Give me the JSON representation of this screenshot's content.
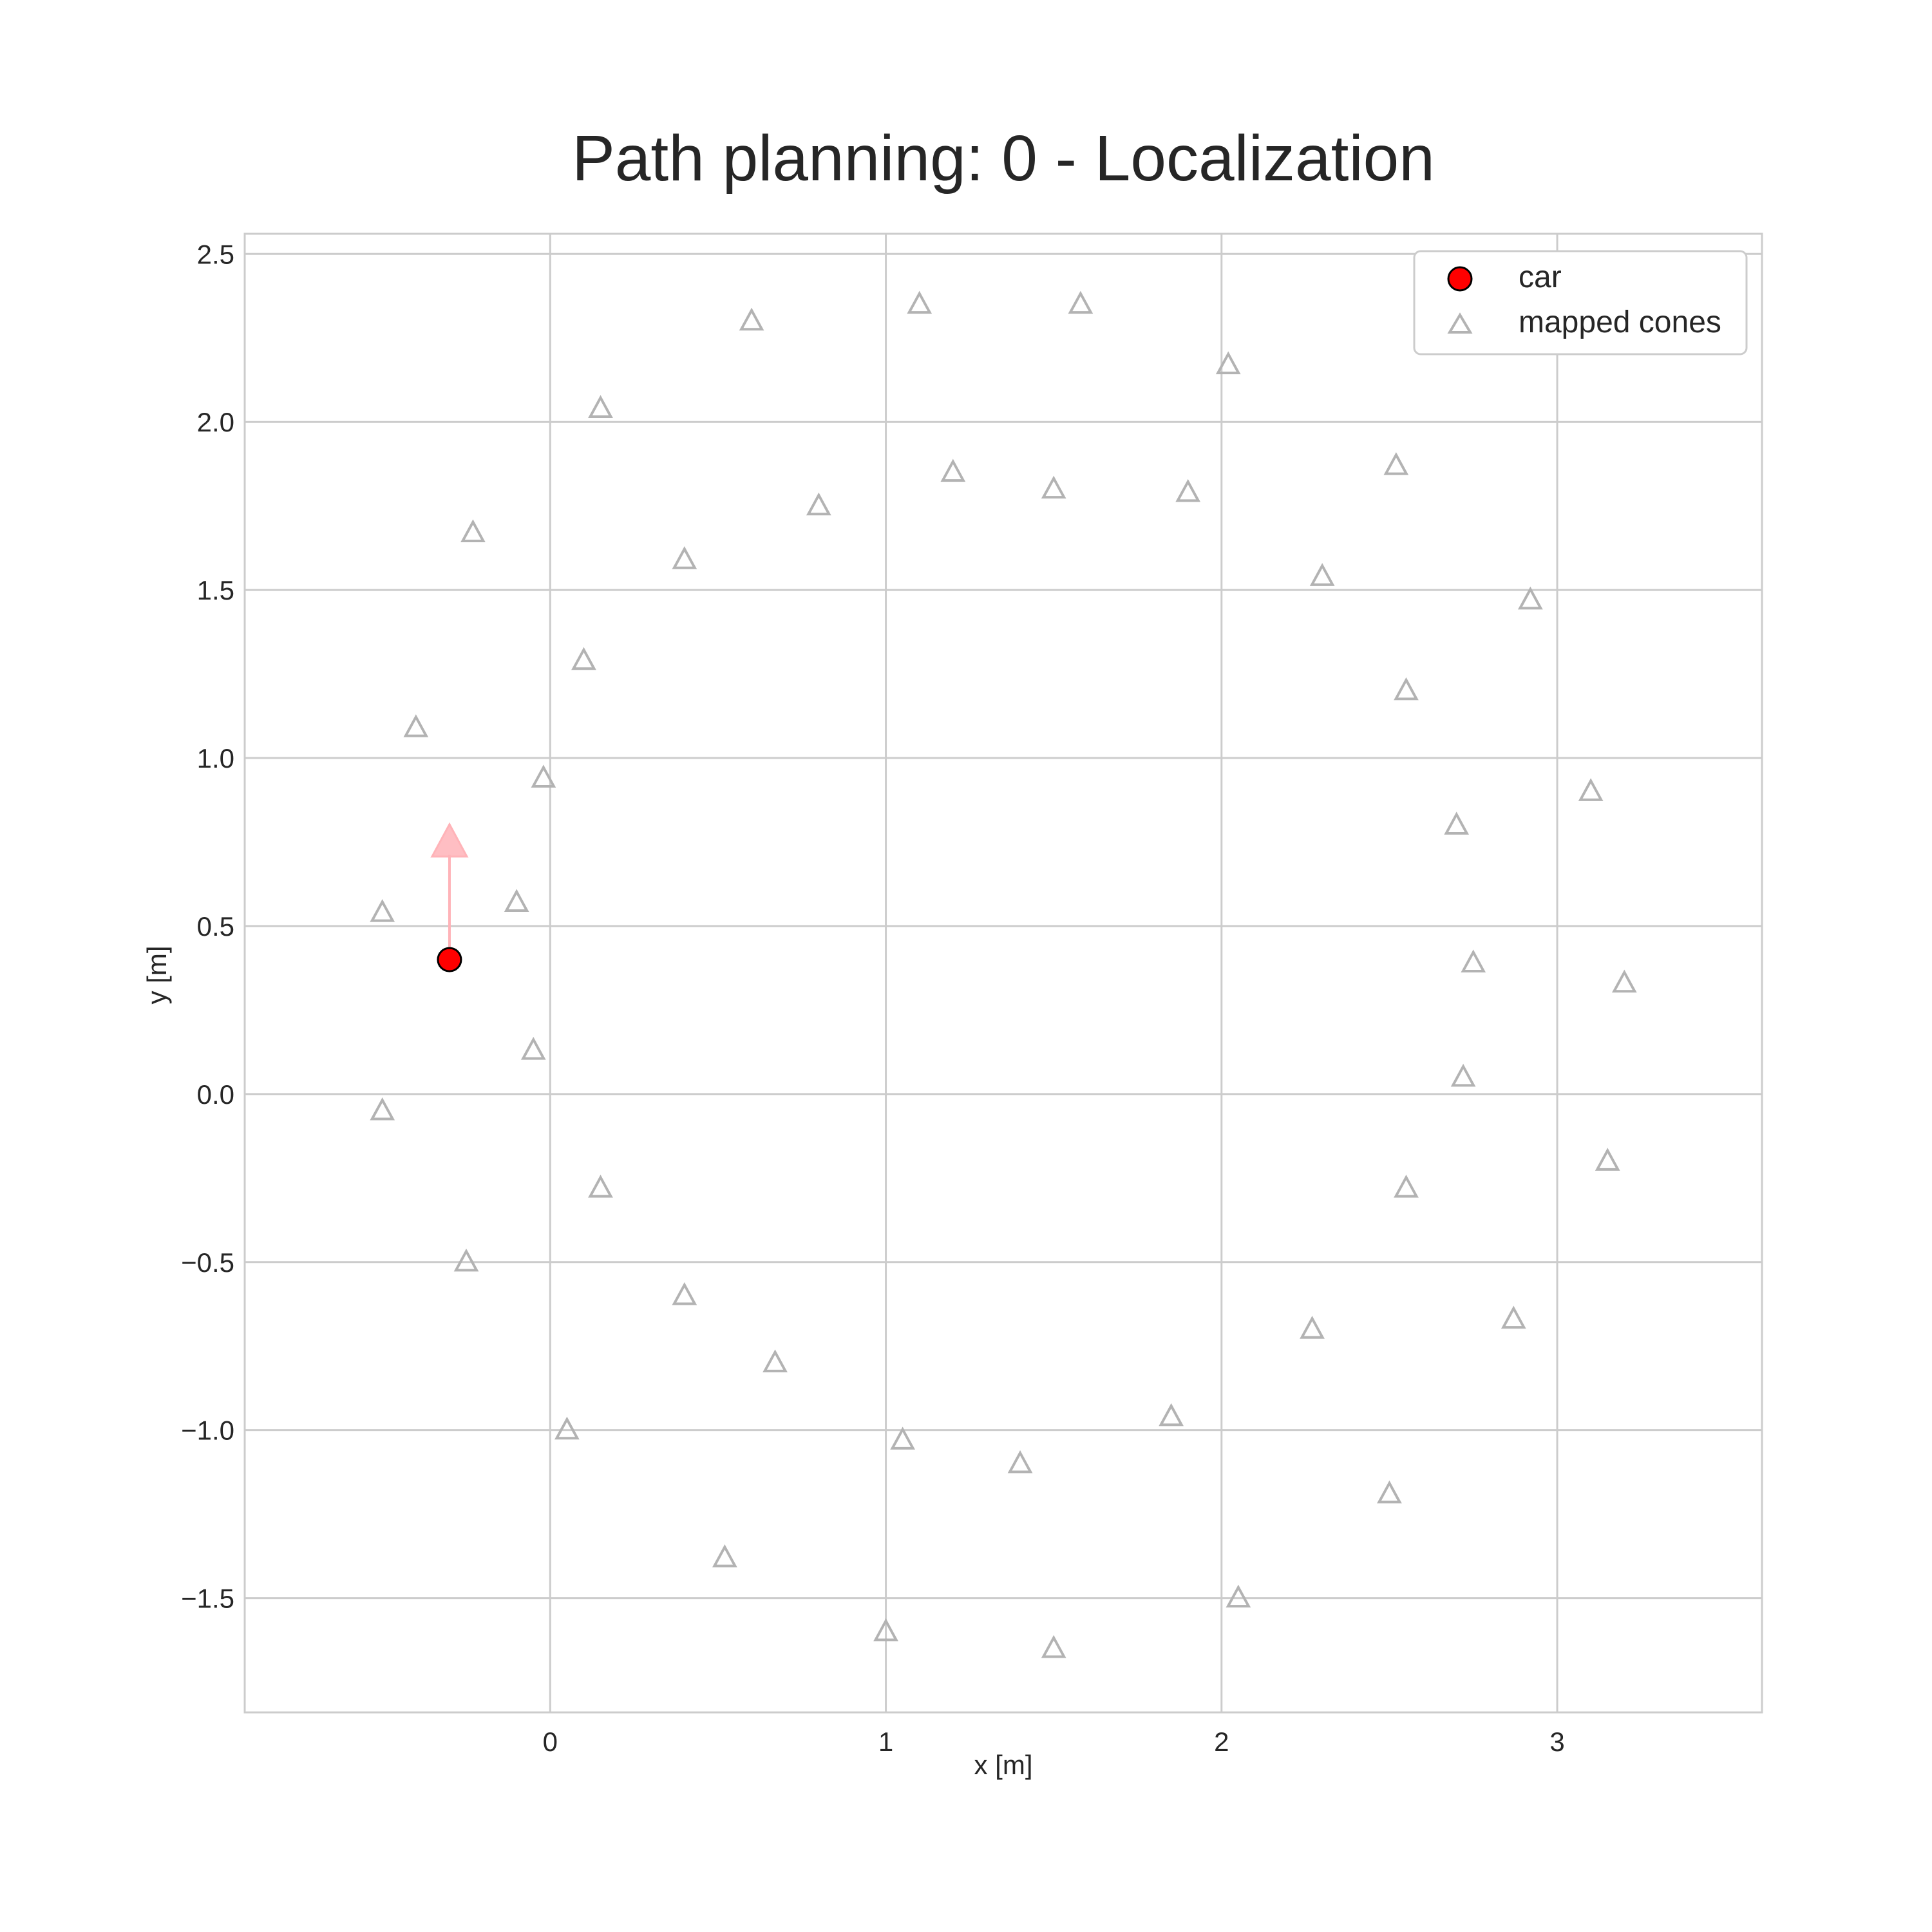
{
  "chart_data": {
    "type": "scatter",
    "title": "Path planning: 0 - Localization",
    "xlabel": "x [m]",
    "ylabel": "y [m]",
    "xlim": [
      -0.91,
      3.61
    ],
    "ylim": [
      -1.84,
      2.56
    ],
    "xticks": [
      "0",
      "1",
      "2",
      "3"
    ],
    "xtick_values": [
      0,
      1,
      2,
      3
    ],
    "yticks": [
      "−1.5",
      "−1.0",
      "−0.5",
      "0.0",
      "0.5",
      "1.0",
      "1.5",
      "2.0",
      "2.5"
    ],
    "ytick_values": [
      -1.5,
      -1.0,
      -0.5,
      0.0,
      0.5,
      1.0,
      1.5,
      2.0,
      2.5
    ],
    "grid": true,
    "legend_position": "top-right",
    "legend": [
      {
        "name": "car",
        "marker": "circle",
        "color": "#ff0000"
      },
      {
        "name": "mapped cones",
        "marker": "triangle",
        "color": "#b3b3b3"
      }
    ],
    "car": {
      "x": -0.3,
      "y": 0.4,
      "heading_to": {
        "x": -0.3,
        "y": 0.75
      },
      "arrow_color": "#ffb3b8"
    },
    "cones": [
      {
        "x": 0.6,
        "y": 2.3
      },
      {
        "x": 1.1,
        "y": 2.35
      },
      {
        "x": 1.58,
        "y": 2.35
      },
      {
        "x": 2.02,
        "y": 2.17
      },
      {
        "x": 0.15,
        "y": 2.04
      },
      {
        "x": -0.23,
        "y": 1.67
      },
      {
        "x": 0.4,
        "y": 1.59
      },
      {
        "x": 0.8,
        "y": 1.75
      },
      {
        "x": 1.2,
        "y": 1.85
      },
      {
        "x": 1.5,
        "y": 1.8
      },
      {
        "x": 1.9,
        "y": 1.79
      },
      {
        "x": 2.52,
        "y": 1.87
      },
      {
        "x": 2.3,
        "y": 1.54
      },
      {
        "x": 2.92,
        "y": 1.47
      },
      {
        "x": 2.55,
        "y": 1.2
      },
      {
        "x": 0.1,
        "y": 1.29
      },
      {
        "x": -0.4,
        "y": 1.09
      },
      {
        "x": -0.02,
        "y": 0.94
      },
      {
        "x": 2.7,
        "y": 0.8
      },
      {
        "x": 3.1,
        "y": 0.9
      },
      {
        "x": -0.5,
        "y": 0.54
      },
      {
        "x": -0.1,
        "y": 0.57
      },
      {
        "x": 2.75,
        "y": 0.39
      },
      {
        "x": 3.2,
        "y": 0.33
      },
      {
        "x": -0.05,
        "y": 0.13
      },
      {
        "x": 2.72,
        "y": 0.05
      },
      {
        "x": -0.5,
        "y": -0.05
      },
      {
        "x": 3.15,
        "y": -0.2
      },
      {
        "x": 0.15,
        "y": -0.28
      },
      {
        "x": 2.55,
        "y": -0.28
      },
      {
        "x": -0.25,
        "y": -0.5
      },
      {
        "x": 0.4,
        "y": -0.6
      },
      {
        "x": 0.67,
        "y": -0.8
      },
      {
        "x": 2.27,
        "y": -0.7
      },
      {
        "x": 2.87,
        "y": -0.67
      },
      {
        "x": 0.05,
        "y": -1.0
      },
      {
        "x": 1.05,
        "y": -1.03
      },
      {
        "x": 1.4,
        "y": -1.1
      },
      {
        "x": 1.85,
        "y": -0.96
      },
      {
        "x": 2.5,
        "y": -1.19
      },
      {
        "x": 0.52,
        "y": -1.38
      },
      {
        "x": 1.0,
        "y": -1.6
      },
      {
        "x": 1.5,
        "y": -1.65
      },
      {
        "x": 2.05,
        "y": -1.5
      }
    ],
    "colors": {
      "car_fill": "#ff0000",
      "car_edge": "#000000",
      "cone_edge": "#b3b3b3",
      "arrow": "#ffb3b8",
      "grid": "#cccccc",
      "frame": "#cccccc"
    }
  }
}
